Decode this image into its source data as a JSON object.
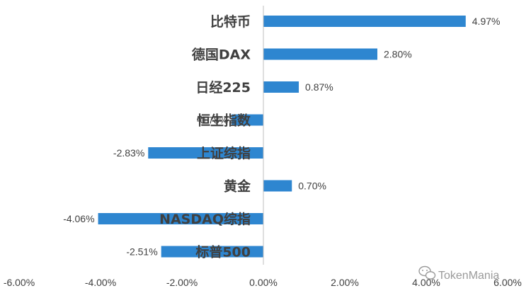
{
  "chart_data": {
    "type": "bar",
    "orientation": "horizontal",
    "categories": [
      "比特币",
      "德国DAX",
      "日经225",
      "恒生指数",
      "上证综指",
      "黄金",
      "NASDAQ综指",
      "标普500"
    ],
    "values": [
      4.97,
      2.8,
      0.87,
      -0.78,
      -2.83,
      0.7,
      -4.06,
      -2.51
    ],
    "value_labels": [
      "4.97%",
      "2.80%",
      "0.87%",
      "-0.78%",
      "-2.83%",
      "0.70%",
      "-4.06%",
      "-2.51%"
    ],
    "xlim": [
      -6,
      6
    ],
    "x_ticks": [
      -6,
      -4,
      -2,
      0,
      2,
      4,
      6
    ],
    "x_tick_labels": [
      "-6.00%",
      "-4.00%",
      "-2.00%",
      "0.00%",
      "2.00%",
      "4.00%",
      "6.00%"
    ],
    "title": "",
    "xlabel": "",
    "ylabel": "",
    "grid": false,
    "bar_color": "#2E86D0"
  },
  "watermark": {
    "text": "TokenMania",
    "icon": "wechat-icon"
  }
}
